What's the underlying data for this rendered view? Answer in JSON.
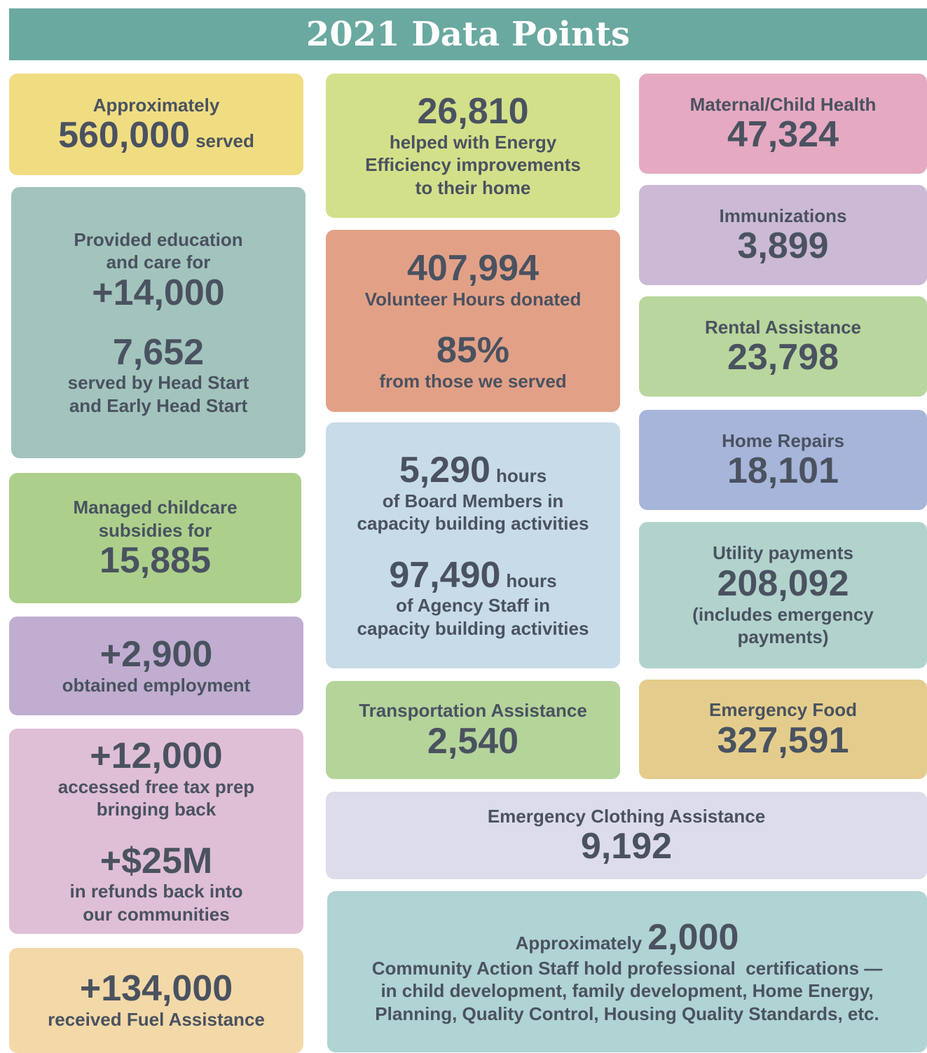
{
  "title": "2021 Data Points",
  "cards": [
    [
      "Approximately",
      "560,000",
      "served"
    ],
    [
      "Provided education",
      "and care for",
      "+14,000",
      "7,652",
      "served by Head Start",
      "and Early Head Start"
    ],
    [
      "Managed childcare",
      "subsidies for",
      "15,885"
    ],
    [
      "+2,900",
      "obtained employment"
    ],
    [
      "+12,000",
      "accessed free tax prep",
      "bringing back",
      "+$25M",
      "in refunds back into",
      "our communities"
    ],
    [
      "+134,000",
      "received Fuel Assistance"
    ],
    [
      "26,810",
      "helped with Energy",
      "Efficiency improvements",
      "to their home"
    ],
    [
      "407,994",
      "Volunteer Hours donated",
      "85%",
      "from those we served"
    ],
    [
      "5,290",
      "hours",
      "of Board Members in",
      "capacity building activities",
      "97,490",
      "hours",
      "of Agency Staff in",
      "capacity building activities"
    ],
    [
      "Transportation Assistance",
      "2,540"
    ],
    [
      "Emergency Clothing Assistance",
      "9,192"
    ],
    [
      "Approximately",
      "2,000",
      "Community Action Staff hold professional  certifications —",
      "in child development, family development, Home Energy,",
      "Planning, Quality Control, Housing Quality Standards, etc."
    ],
    [
      "Maternal/Child Health",
      "47,324"
    ],
    [
      "Immunizations",
      "3,899"
    ],
    [
      "Rental Assistance",
      "23,798"
    ],
    [
      "Home Repairs",
      "18,101"
    ],
    [
      "Utility payments",
      "208,092",
      "(includes emergency",
      "payments)"
    ],
    [
      "Emergency Food",
      "327,591"
    ]
  ]
}
